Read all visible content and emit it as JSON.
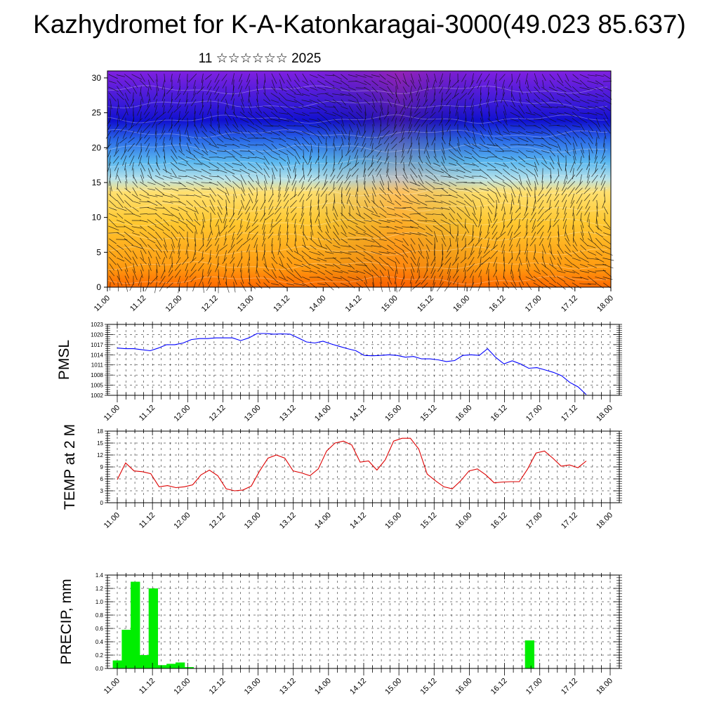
{
  "title": "Kazhydromet for K-A-Katonkaragai-3000(49.023 85.637)",
  "subtitle": "11 ☆☆☆☆☆☆ 2025",
  "chart_data": [
    {
      "type": "heatmap",
      "description_note": "",
      "x_ticks": [
        "11.00",
        "11.12",
        "12.00",
        "12.12",
        "13.00",
        "13.12",
        "14.00",
        "14.12",
        "15.00",
        "15.12",
        "16.00",
        "16.12",
        "17.00",
        "17.12",
        "18.00"
      ],
      "y_ticks": [
        0,
        5,
        10,
        15,
        20,
        25,
        30
      ],
      "ylim": [
        0,
        31
      ],
      "colors": {
        "bottom": "#ff6a00",
        "low": "#ffc830",
        "mid": "#ffe070",
        "transition": "#9ad8f0",
        "upper": "#2a6ae8",
        "top": "#1010d0",
        "cap": "#8020e0"
      }
    },
    {
      "type": "line",
      "ylabel": "PMSL",
      "x_ticks": [
        "11.00",
        "11.12",
        "12.00",
        "12.12",
        "13.00",
        "13.12",
        "14.00",
        "14.12",
        "15.00",
        "15.12",
        "16.00",
        "16.12",
        "17.00",
        "17.12",
        "18.00"
      ],
      "y_ticks": [
        1002,
        1005,
        1008,
        1011,
        1014,
        1017,
        1020,
        1023
      ],
      "ylim": [
        1002,
        1023
      ],
      "color": "#0000ff",
      "series": [
        {
          "values": [
            1016,
            1015.8,
            1015.8,
            1015.5,
            1015.2,
            1016,
            1017,
            1017,
            1017.5,
            1018.5,
            1018.8,
            1018.8,
            1019,
            1019,
            1019,
            1018.2,
            1019,
            1020.3,
            1020.3,
            1020.1,
            1020.2,
            1020.1,
            1019,
            1017.8,
            1017.5,
            1018,
            1017.2,
            1016.5,
            1015.8,
            1015.2,
            1013.8,
            1013.7,
            1013.8,
            1014,
            1013.8,
            1013.3,
            1013.5,
            1012.8,
            1012.8,
            1012.5,
            1012,
            1012.3,
            1013.8,
            1014,
            1013.8,
            1015.8,
            1013.2,
            1011.3,
            1012.2,
            1011.3,
            1010,
            1010.2,
            1009.5,
            1008.8,
            1007.8,
            1005.8,
            1004.5,
            1002.2
          ]
        }
      ]
    },
    {
      "type": "line",
      "ylabel": "TEMP at 2 M",
      "x_ticks": [
        "11.00",
        "11.12",
        "12.00",
        "12.12",
        "13.00",
        "13.12",
        "14.00",
        "14.12",
        "15.00",
        "15.12",
        "16.00",
        "16.12",
        "17.00",
        "17.12",
        "18.00"
      ],
      "y_ticks": [
        0,
        3,
        6,
        9,
        12,
        15,
        18
      ],
      "ylim": [
        0,
        18
      ],
      "color": "#dd0000",
      "series": [
        {
          "values": [
            5.8,
            10,
            8,
            7.8,
            7.3,
            4,
            4.3,
            3.8,
            4,
            4.5,
            7,
            8.2,
            6.8,
            3.5,
            3,
            3.2,
            4.2,
            8,
            11.2,
            12,
            11.2,
            8,
            7.5,
            6.8,
            8.5,
            13,
            15,
            15.5,
            14.5,
            10.2,
            10.5,
            8.2,
            10.8,
            15.5,
            16.2,
            16.2,
            13.5,
            7.2,
            5.5,
            4,
            3.5,
            5.5,
            8,
            8.5,
            7,
            5,
            5.2,
            5.3,
            5.3,
            8.5,
            12.5,
            13,
            11.2,
            9.2,
            9.5,
            8.8,
            10.5
          ]
        }
      ]
    },
    {
      "type": "bar",
      "ylabel": "PRECIP, mm",
      "x_ticks": [
        "11.00",
        "11.12",
        "12.00",
        "12.12",
        "13.00",
        "13.12",
        "14.00",
        "14.12",
        "15.00",
        "15.12",
        "16.00",
        "16.12",
        "17.00",
        "17.12",
        "18.00"
      ],
      "y_ticks": [
        "0.0",
        "0.2",
        "0.4",
        "0.6",
        "0.8",
        "1.0",
        "1.2",
        "1.4"
      ],
      "ylim": [
        0,
        1.4
      ],
      "color": "#00ee00",
      "series": [
        {
          "values": [
            0.12,
            0.58,
            1.3,
            0.2,
            1.2,
            0.05,
            0.07,
            0.09,
            0.02,
            0,
            0,
            0,
            0,
            0,
            0,
            0,
            0,
            0,
            0,
            0,
            0,
            0,
            0,
            0,
            0,
            0,
            0,
            0,
            0,
            0,
            0,
            0,
            0,
            0,
            0,
            0,
            0,
            0,
            0,
            0,
            0,
            0,
            0,
            0,
            0,
            0,
            0.42,
            0,
            0,
            0,
            0,
            0,
            0,
            0,
            0,
            0
          ]
        }
      ]
    }
  ]
}
